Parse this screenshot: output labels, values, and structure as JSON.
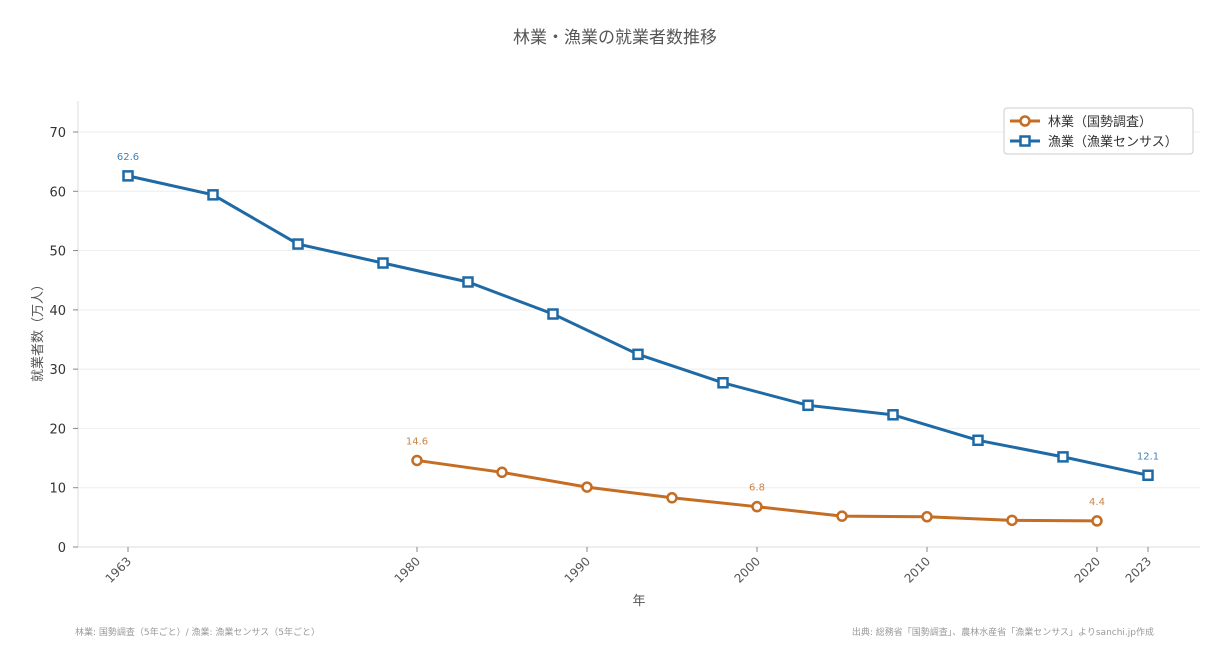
{
  "chart_data": {
    "type": "line",
    "title": "林業・漁業の就業者数推移",
    "xlabel": "年",
    "ylabel": "就業者数（万人）",
    "xlim": [
      1960,
      2026
    ],
    "ylim": [
      0,
      75
    ],
    "x_ticks": [
      1963,
      1980,
      1990,
      2000,
      2010,
      2020,
      2023
    ],
    "y_ticks": [
      0,
      10,
      20,
      30,
      40,
      50,
      60,
      70
    ],
    "grid": true,
    "legend_position": "top-right",
    "series": [
      {
        "name": "林業（国勢調査）",
        "color": "#c46d23",
        "marker": "circle",
        "x": [
          1980,
          1985,
          1990,
          1995,
          2000,
          2005,
          2010,
          2015,
          2020
        ],
        "values": [
          14.6,
          12.6,
          10.1,
          8.3,
          6.8,
          5.2,
          5.1,
          4.5,
          4.4
        ],
        "data_labels": {
          "1980": "14.6",
          "2000": "6.8",
          "2020": "4.4"
        }
      },
      {
        "name": "漁業（漁業センサス）",
        "color": "#1f6aa5",
        "marker": "square",
        "x": [
          1963,
          1968,
          1973,
          1978,
          1983,
          1988,
          1993,
          1998,
          2003,
          2008,
          2013,
          2018,
          2023
        ],
        "values": [
          62.6,
          59.4,
          51.1,
          47.9,
          44.7,
          39.3,
          32.5,
          27.7,
          23.9,
          22.3,
          18.0,
          15.2,
          12.1
        ],
        "data_labels": {
          "1963": "62.6",
          "2023": "12.1"
        }
      }
    ]
  },
  "notes": {
    "left": "林業: 国勢調査（5年ごと）/ 漁業: 漁業センサス（5年ごと）",
    "right": "出典: 総務省「国勢調査」、農林水産省「漁業センサス」よりsanchi.jp作成"
  }
}
